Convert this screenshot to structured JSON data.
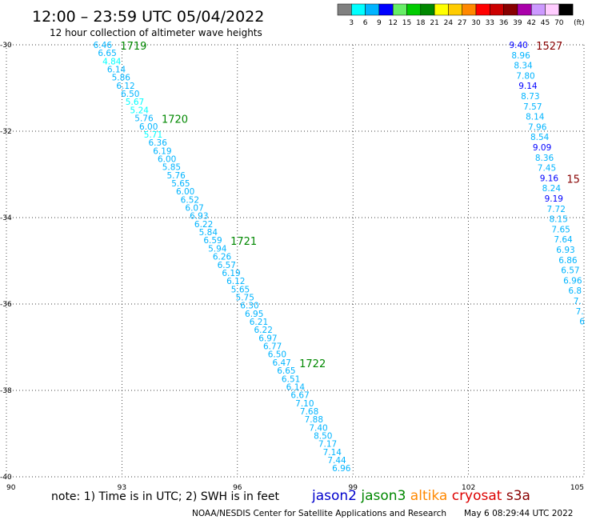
{
  "header": {
    "title": "12:00 – 23:59 UTC 05/04/2022",
    "subtitle": "12 hour collection of altimeter wave heights"
  },
  "scale": {
    "unit": "(ft)",
    "ticks": [
      "3",
      "6",
      "9",
      "12",
      "15",
      "18",
      "21",
      "24",
      "27",
      "30",
      "33",
      "36",
      "39",
      "42",
      "45",
      "70"
    ],
    "colors": [
      "#808080",
      "#00ffff",
      "#00b4ff",
      "#0000ff",
      "#66ee66",
      "#00cc00",
      "#008800",
      "#ffff00",
      "#ffcc00",
      "#ff8800",
      "#ff0000",
      "#cc0000",
      "#880000",
      "#aa00aa",
      "#cc99ff",
      "#ffccff",
      "#000000"
    ]
  },
  "footer": {
    "note": "note: 1) Time is in UTC; 2) SWH is in feet",
    "credit": "NOAA/NESDIS Center for Satellite Applications and Research",
    "timestamp": "May  6 08:29:44 UTC 2022",
    "satellites": [
      {
        "name": "jason2",
        "color": "#0000cc"
      },
      {
        "name": "jason3",
        "color": "#008800"
      },
      {
        "name": "altika",
        "color": "#ff8800"
      },
      {
        "name": "cryosat",
        "color": "#dd0000"
      },
      {
        "name": "s3a",
        "color": "#880000"
      }
    ]
  },
  "chart_data": {
    "type": "scatter",
    "title": "12:00 – 23:59 UTC 05/04/2022",
    "subtitle": "12 hour collection of altimeter wave heights",
    "xlim": [
      90,
      105
    ],
    "ylim": [
      -40,
      -30
    ],
    "x_ticks": [
      "90",
      "93",
      "96",
      "99",
      "102",
      "105"
    ],
    "y_ticks": [
      "-30",
      "-32",
      "-34",
      "-36",
      "-38",
      "-40"
    ],
    "grid": true,
    "value_unit": "feet",
    "tracks": [
      {
        "satellite": "jason3",
        "label_color": "#008800",
        "start": [
          92.5,
          -30.0
        ],
        "end": [
          98.7,
          -39.8
        ],
        "values": [
          "6.46",
          "6.65",
          "4.84",
          "6.14",
          "5.86",
          "6.12",
          "6.50",
          "5.67",
          "5.24",
          "5.76",
          "6.00",
          "5.71",
          "6.36",
          "6.19",
          "6.00",
          "5.85",
          "5.76",
          "5.65",
          "6.00",
          "6.52",
          "6.07",
          "6.93",
          "6.22",
          "5.84",
          "6.59",
          "5.94",
          "6.26",
          "6.57",
          "6.19",
          "6.12",
          "5.65",
          "5.75",
          "6.30",
          "6.95",
          "6.21",
          "6.22",
          "6.97",
          "6.77",
          "6.50",
          "6.47",
          "6.65",
          "6.51",
          "6.14",
          "6.67",
          "7.10",
          "7.68",
          "7.88",
          "7.40",
          "8.50",
          "7.17",
          "7.14",
          "7.44",
          "6.96"
        ],
        "value_colors": [
          "#00b4ff",
          "#00b4ff",
          "#00ffff",
          "#00b4ff",
          "#00b4ff",
          "#00b4ff",
          "#00b4ff",
          "#00ffff",
          "#00ffff",
          "#00b4ff",
          "#00b4ff",
          "#00ffff",
          "#00b4ff",
          "#00b4ff",
          "#00b4ff",
          "#00b4ff",
          "#00b4ff",
          "#00b4ff",
          "#00b4ff",
          "#00b4ff",
          "#00b4ff",
          "#00b4ff",
          "#00b4ff",
          "#00b4ff",
          "#00b4ff",
          "#00b4ff",
          "#00b4ff",
          "#00b4ff",
          "#00b4ff",
          "#00b4ff",
          "#00b4ff",
          "#00b4ff",
          "#00b4ff",
          "#00b4ff",
          "#00b4ff",
          "#00b4ff",
          "#00b4ff",
          "#00b4ff",
          "#00b4ff",
          "#00b4ff",
          "#00b4ff",
          "#00b4ff",
          "#00b4ff",
          "#00b4ff",
          "#00b4ff",
          "#00b4ff",
          "#00b4ff",
          "#00b4ff",
          "#00b4ff",
          "#00b4ff",
          "#00b4ff",
          "#00b4ff",
          "#00b4ff"
        ],
        "time_labels": [
          {
            "text": "1719",
            "index": 0
          },
          {
            "text": "1720",
            "index": 9
          },
          {
            "text": "1721",
            "index": 24
          },
          {
            "text": "1722",
            "index": 39
          }
        ]
      },
      {
        "satellite": "s3a",
        "label_color": "#880000",
        "start": [
          103.3,
          -30.0
        ],
        "end": [
          104.95,
          -36.4
        ],
        "values": [
          "9.40",
          "8.96",
          "8.34",
          "7.80",
          "9.14",
          "8.73",
          "7.57",
          "8.14",
          "7.96",
          "8.54",
          "9.09",
          "8.36",
          "7.45",
          "9.16",
          "8.24",
          "9.19",
          "7.72",
          "8.15",
          "7.65",
          "7.64",
          "6.93",
          "6.86",
          "6.57",
          "6.96",
          "6.8",
          "7.",
          "7.",
          "6"
        ],
        "value_colors": [
          "#0000ff",
          "#00b4ff",
          "#00b4ff",
          "#00b4ff",
          "#0000ff",
          "#00b4ff",
          "#00b4ff",
          "#00b4ff",
          "#00b4ff",
          "#00b4ff",
          "#0000ff",
          "#00b4ff",
          "#00b4ff",
          "#0000ff",
          "#00b4ff",
          "#0000ff",
          "#00b4ff",
          "#00b4ff",
          "#00b4ff",
          "#00b4ff",
          "#00b4ff",
          "#00b4ff",
          "#00b4ff",
          "#00b4ff",
          "#00b4ff",
          "#00b4ff",
          "#00b4ff",
          "#00b4ff"
        ],
        "time_labels": [
          {
            "text": "1527",
            "index": 0
          },
          {
            "text": "15",
            "index": 13
          }
        ]
      }
    ]
  }
}
